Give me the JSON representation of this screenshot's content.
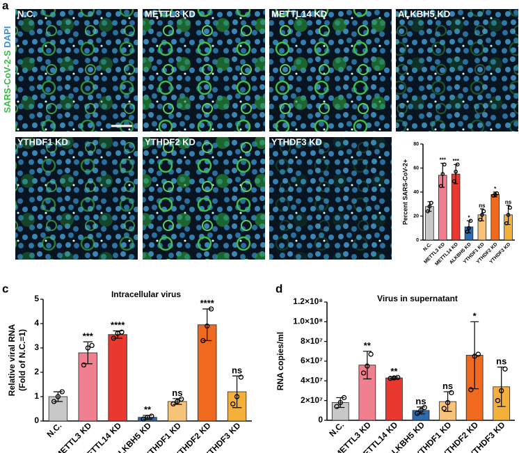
{
  "panel_labels": [
    "a",
    "b",
    "c",
    "d"
  ],
  "image_axis_label": [
    "SARS-CoV-2-S",
    "DAPI"
  ],
  "images": [
    "N.C.",
    "METTL3 KD",
    "METTL14 KD",
    "ALKBH5 KD",
    "YTHDF1 KD",
    "YTHDF2 KD",
    "YTHDF3 KD"
  ],
  "chart_data": [
    {
      "type": "bar",
      "ylabel": [
        "Percent SARS-CoV-2+"
      ],
      "categories": [
        "N.C.",
        "METTL3 KD",
        "METTL14 KD",
        "ALKBH5 KD",
        "YTHDF1 KD",
        "YTHDF2 KD",
        "YTHDF3 KD"
      ],
      "colors": [
        "#c8c8c8",
        "#f07f8f",
        "#e8382f",
        "#2e6ab0",
        "#f7c27a",
        "#ef6a1e",
        "#f3b13b"
      ],
      "values": [
        28,
        54,
        55,
        11,
        21,
        38,
        21
      ],
      "errors": [
        4,
        10,
        8,
        5,
        5,
        2,
        8
      ],
      "points": [
        [
          24,
          28,
          31
        ],
        [
          45,
          55,
          63
        ],
        [
          49,
          57,
          63
        ],
        [
          7,
          10,
          16
        ],
        [
          17,
          21,
          24
        ],
        [
          37,
          38,
          39
        ],
        [
          14,
          21,
          27
        ]
      ],
      "significance": [
        null,
        "***",
        "***",
        "*",
        "ns",
        "*",
        "ns"
      ],
      "ylim": [
        0,
        80
      ],
      "yticks": [
        0,
        20,
        40,
        60,
        80
      ]
    },
    {
      "type": "bar",
      "title": "Intracellular virus",
      "ylabel": [
        "Relative viral RNA",
        "(Fold of N.C.=1)"
      ],
      "categories": [
        "N.C.",
        "METTL3 KD",
        "METTL14 KD",
        "ALKBH5 KD",
        "YTHDF1 KD",
        "YTHDF2 KD",
        "YTHDF3 KD"
      ],
      "colors": [
        "#c8c8c8",
        "#f07f8f",
        "#e8382f",
        "#2e6ab0",
        "#f7c27a",
        "#ef6a1e",
        "#f3b13b"
      ],
      "values": [
        1.0,
        2.8,
        3.55,
        0.15,
        0.8,
        3.95,
        1.2
      ],
      "errors": [
        0.2,
        0.45,
        0.15,
        0.08,
        0.12,
        0.65,
        0.65
      ],
      "points": [
        [
          0.8,
          1.0,
          1.2
        ],
        [
          2.3,
          3.0,
          3.1
        ],
        [
          3.4,
          3.6,
          3.65
        ],
        [
          0.08,
          0.15,
          0.2
        ],
        [
          0.7,
          0.8,
          0.9
        ],
        [
          3.3,
          3.9,
          4.6
        ],
        [
          0.7,
          1.0,
          1.8
        ]
      ],
      "significance": [
        null,
        "***",
        "****",
        "**",
        "ns",
        "****",
        "ns"
      ],
      "ylim": [
        0,
        5
      ],
      "yticks": [
        0,
        1,
        2,
        3,
        4,
        5
      ]
    },
    {
      "type": "bar",
      "title": "Virus in supernatant",
      "ylabel": [
        "RNA copies/ml"
      ],
      "categories": [
        "N.C.",
        "METTL3 KD",
        "METTL14 KD",
        "ALKBH5 KD",
        "YTHDF1 KD",
        "YTHDF2 KD",
        "YTHDF3 KD"
      ],
      "colors": [
        "#c8c8c8",
        "#f07f8f",
        "#e8382f",
        "#2e6ab0",
        "#f7c27a",
        "#ef6a1e",
        "#f3b13b"
      ],
      "values": [
        18000000,
        56000000,
        43000000,
        10000000,
        19000000,
        66000000,
        34000000
      ],
      "errors": [
        5000000,
        14000000,
        1000000,
        3500000,
        10000000,
        34000000,
        20000000
      ],
      "points": [
        [
          14000000,
          18000000,
          23000000
        ],
        [
          48000000,
          55000000,
          67000000
        ],
        [
          42500000,
          43000000,
          43500000
        ],
        [
          7000000,
          10000000,
          13000000
        ],
        [
          12000000,
          18000000,
          28000000
        ],
        [
          31000000,
          65000000,
          67000000
        ],
        [
          20000000,
          30000000,
          52000000
        ]
      ],
      "significance": [
        null,
        "**",
        "**",
        "ns",
        "ns",
        "*",
        "ns"
      ],
      "ylim": [
        0,
        120000000
      ],
      "yticks": [
        0,
        {
          "value": 20000000,
          "label": "2×10⁷"
        },
        {
          "value": 40000000,
          "label": "4×10⁷"
        },
        {
          "value": 60000000,
          "label": "6×10⁷"
        },
        {
          "value": 80000000,
          "label": "8×10⁷"
        },
        {
          "value": 100000000,
          "label": "1.0×10⁸"
        },
        {
          "value": 120000000,
          "label": "1.2×10⁸"
        }
      ]
    }
  ]
}
